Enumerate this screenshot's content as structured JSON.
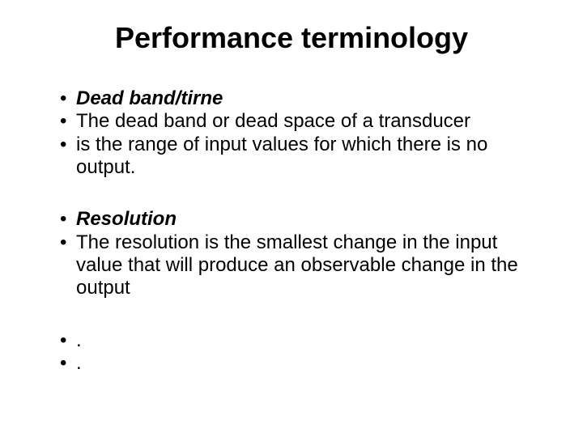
{
  "title": "Performance terminology",
  "group1": {
    "line1": "Dead band/tirne",
    "line2": "The dead band or dead space of a transducer",
    "line3": "is the range of input values for which there is no output."
  },
  "group2": {
    "line1": "Resolution",
    "line2": "The resolution is the smallest change in the input value that will produce an observable change in the output"
  },
  "group3": {
    "line1": ".",
    "line2": "."
  },
  "styles": {
    "title_fontsize": 36,
    "body_fontsize": 24,
    "text_color": "#000000",
    "background_color": "#ffffff",
    "font_family": "Arial"
  }
}
